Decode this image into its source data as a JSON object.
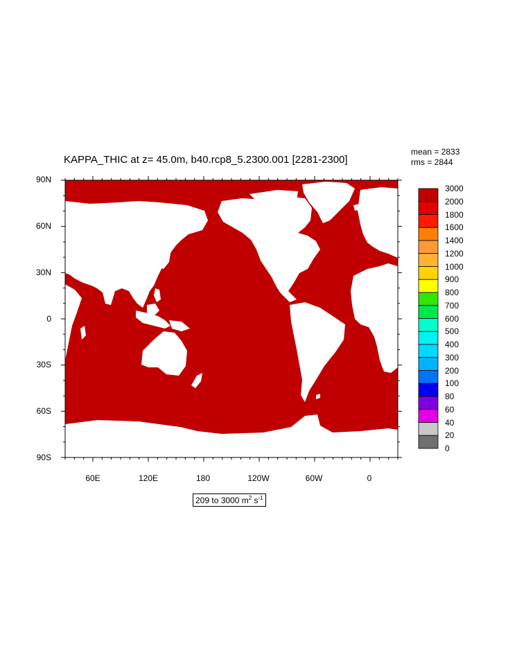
{
  "title": "KAPPA_THIC at z=  45.0m, b40.rcp8_5.2300.001 [2281-2300]",
  "stats": {
    "mean": "mean = 2833",
    "rms": "rms = 2844"
  },
  "lat_labels": [
    "90N",
    "60N",
    "30N",
    "0",
    "30S",
    "60S",
    "90S"
  ],
  "lon_labels": [
    "60E",
    "120E",
    "180",
    "120W",
    "60W",
    "0"
  ],
  "colorbar": {
    "labels": [
      "3000",
      "2000",
      "1800",
      "1600",
      "1400",
      "1200",
      "1000",
      "900",
      "800",
      "700",
      "600",
      "500",
      "400",
      "300",
      "200",
      "100",
      "80",
      "60",
      "40",
      "20",
      "0"
    ],
    "colors": [
      "#c00000",
      "#e00000",
      "#ff1a00",
      "#ff8000",
      "#ff9933",
      "#ffb233",
      "#ffd400",
      "#ffff00",
      "#33e600",
      "#00e64d",
      "#00ffcc",
      "#00f2f2",
      "#00d9ff",
      "#00b3ff",
      "#0073ff",
      "#0000f0",
      "#8000e0",
      "#e600e6",
      "#c8c8c8",
      "#707070"
    ]
  },
  "range_text": {
    "prefix": "209 to 3000 m",
    "sup1": "2",
    "mid": " s",
    "sup2": "-1"
  },
  "field_color": "#c00000"
}
